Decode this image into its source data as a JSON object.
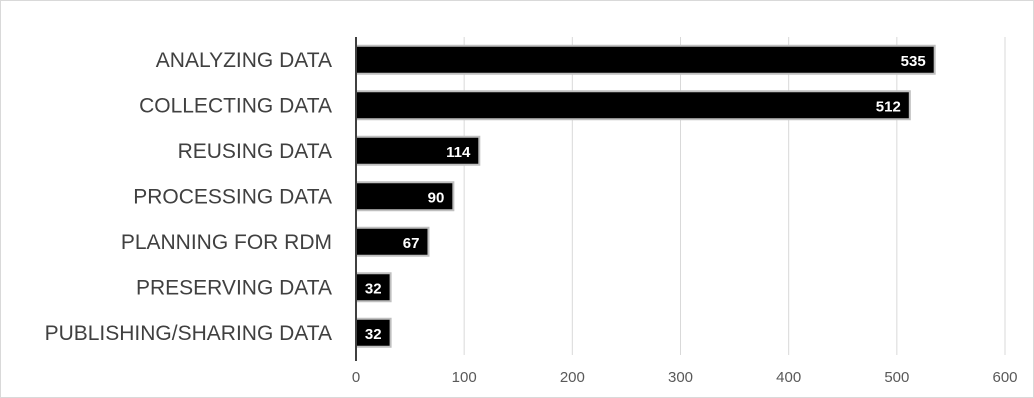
{
  "chart_data": {
    "type": "bar",
    "orientation": "horizontal",
    "title": "",
    "xlabel": "",
    "ylabel": "",
    "categories": [
      "ANALYZING DATA",
      "COLLECTING DATA",
      "REUSING DATA",
      "PROCESSING DATA",
      "PLANNING FOR RDM",
      "PRESERVING DATA",
      "PUBLISHING/SHARING DATA"
    ],
    "values": [
      535,
      512,
      114,
      90,
      67,
      32,
      32
    ],
    "data_labels": [
      "535",
      "512",
      "114",
      "90",
      "67",
      "32",
      "32"
    ],
    "xlim": [
      0,
      600
    ],
    "xticks": [
      "0",
      "100",
      "200",
      "300",
      "400",
      "500",
      "600"
    ],
    "grid": "vertical",
    "legend": "none",
    "colors": {
      "bar": "#000000",
      "bar_outline": "#bfbfbf",
      "gridline": "#d9d9d9",
      "axis": "#404040",
      "label_text": "#404040",
      "tick_text": "#595959",
      "data_label_text": "#ffffff"
    }
  }
}
